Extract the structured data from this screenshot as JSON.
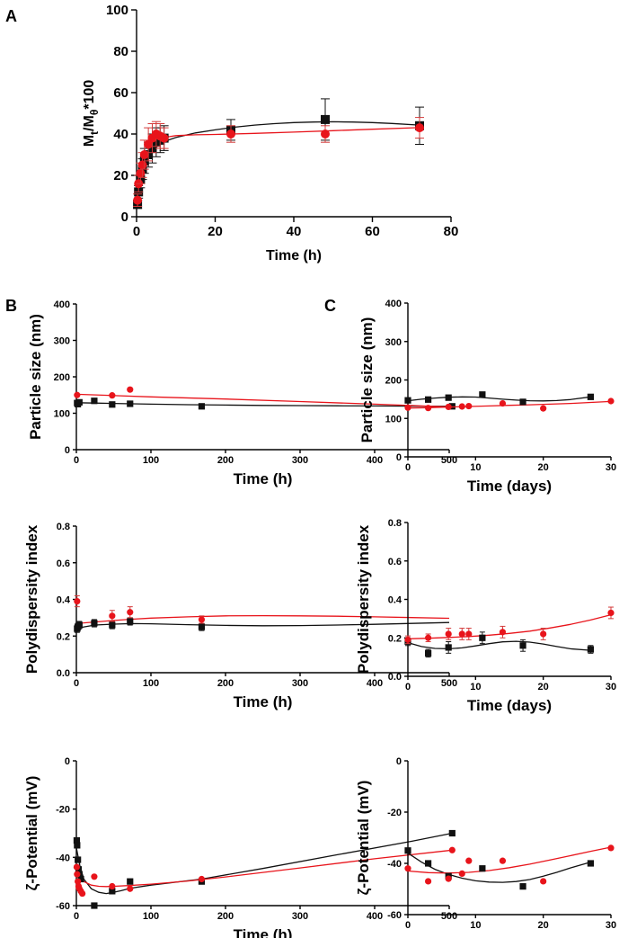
{
  "panel_labels": {
    "a": "A",
    "b": "B",
    "c": "C"
  },
  "colors": {
    "black_series": "#111111",
    "red_series": "#e8141b",
    "red_errorbar": "#d33b3b"
  },
  "chart_data": [
    {
      "id": "A",
      "type": "scatter",
      "xlabel": "Time (h)",
      "ylabel_main": "M",
      "ylabel_sub1": "t",
      "ylabel_mid": "/M",
      "ylabel_sub2": "θ",
      "ylabel_tail": "*100",
      "xlim": [
        0,
        80
      ],
      "ylim": [
        0,
        100
      ],
      "xticks": [
        "0",
        "20",
        "40",
        "60",
        "80"
      ],
      "xtick_values": [
        0,
        20,
        40,
        60,
        80
      ],
      "yticks": [
        "0",
        "20",
        "40",
        "60",
        "80",
        "100"
      ],
      "ytick_values": [
        0,
        20,
        40,
        60,
        80,
        100
      ],
      "series": [
        {
          "name": "black",
          "marker": "square",
          "x": [
            0.25,
            0.5,
            1,
            1.5,
            2,
            3,
            4,
            5,
            6,
            7,
            24,
            48,
            72
          ],
          "y": [
            6,
            12,
            18,
            23,
            27,
            30,
            33,
            36,
            37,
            38,
            42,
            47,
            44
          ],
          "err": [
            2,
            3,
            4,
            5,
            6,
            6,
            7,
            7,
            6,
            6,
            5,
            10,
            9
          ],
          "curve_x": [
            0,
            0.5,
            1,
            2,
            3,
            4,
            5,
            6,
            8,
            10,
            15,
            20,
            25,
            30,
            35,
            40,
            45,
            50,
            55,
            60,
            65,
            72
          ],
          "curve_y": [
            5,
            12,
            17,
            24,
            28.5,
            31.5,
            33.5,
            35,
            37,
            38.3,
            40.5,
            42,
            43.3,
            44.3,
            45,
            45.5,
            45.8,
            45.9,
            45.8,
            45.5,
            45.1,
            44.3
          ]
        },
        {
          "name": "red",
          "marker": "circle",
          "x": [
            0.25,
            0.5,
            1,
            1.5,
            2,
            3,
            4,
            5,
            6,
            7,
            24,
            48,
            72
          ],
          "y": [
            8,
            16,
            21,
            25,
            30,
            35,
            38,
            40,
            39,
            38,
            40,
            40,
            43
          ],
          "err": [
            3,
            4,
            5,
            6,
            7,
            8,
            7,
            6,
            6,
            5,
            4,
            4,
            5
          ],
          "curve_x": [
            0,
            0.5,
            1,
            2,
            3,
            4,
            5,
            7,
            10,
            15,
            20,
            30,
            40,
            50,
            60,
            72
          ],
          "curve_y": [
            6,
            14,
            20,
            27,
            31.5,
            34.5,
            36.5,
            38.3,
            39.2,
            39.6,
            39.8,
            40.3,
            40.9,
            41.6,
            42.3,
            43.1
          ]
        }
      ]
    },
    {
      "id": "B1",
      "type": "scatter",
      "xlabel": "Time (h)",
      "ylabel": "Particle size (nm)",
      "xlim": [
        0,
        500
      ],
      "ylim": [
        0,
        400
      ],
      "xticks": [
        "0",
        "100",
        "200",
        "300",
        "400",
        "500"
      ],
      "xtick_values": [
        0,
        100,
        200,
        300,
        400,
        500
      ],
      "yticks": [
        "0",
        "100",
        "200",
        "300",
        "400"
      ],
      "ytick_values": [
        0,
        100,
        200,
        300,
        400
      ],
      "series": [
        {
          "name": "black",
          "marker": "square",
          "x": [
            1,
            2,
            4,
            24,
            48,
            72,
            168,
            504
          ],
          "y": [
            128,
            125,
            130,
            134,
            124,
            126,
            119,
            119
          ],
          "err": [],
          "curve_x": [
            0,
            25,
            50,
            75,
            100,
            150,
            200,
            250,
            300,
            350,
            400,
            450,
            504
          ],
          "curve_y": [
            129,
            128,
            127,
            126,
            125,
            123.5,
            122.5,
            121.5,
            121,
            120.5,
            120,
            119.5,
            119
          ]
        },
        {
          "name": "red",
          "marker": "circle",
          "x": [
            1,
            48,
            72
          ],
          "y": [
            150,
            149,
            165
          ],
          "err": [],
          "curve_x": [
            0,
            100,
            200,
            300,
            400,
            504
          ],
          "curve_y": [
            152,
            145,
            139,
            132,
            125,
            117
          ]
        }
      ]
    },
    {
      "id": "B2",
      "type": "scatter",
      "xlabel": "Time (h)",
      "ylabel": "Polydispersity index",
      "xlim": [
        0,
        500
      ],
      "ylim": [
        0,
        0.8
      ],
      "xticks": [
        "0",
        "100",
        "200",
        "300",
        "400",
        "500"
      ],
      "xtick_values": [
        0,
        100,
        200,
        300,
        400,
        500
      ],
      "yticks": [
        "0.0",
        "0.2",
        "0.4",
        "0.6",
        "0.8"
      ],
      "ytick_values": [
        0,
        0.2,
        0.4,
        0.6,
        0.8
      ],
      "series": [
        {
          "name": "black",
          "marker": "square",
          "x": [
            1,
            2,
            4,
            24,
            48,
            72,
            168
          ],
          "y": [
            0.24,
            0.25,
            0.26,
            0.27,
            0.26,
            0.28,
            0.25
          ],
          "err": [
            0.02,
            0.02,
            0.02,
            0.02,
            0.02,
            0.02,
            0.02
          ],
          "curve_x": [
            0,
            10,
            25,
            50,
            75,
            100,
            150,
            200,
            250,
            300,
            350,
            400,
            450,
            500
          ],
          "curve_y": [
            0.24,
            0.25,
            0.26,
            0.265,
            0.268,
            0.267,
            0.262,
            0.258,
            0.256,
            0.257,
            0.26,
            0.264,
            0.269,
            0.274
          ]
        },
        {
          "name": "red",
          "marker": "circle",
          "x": [
            1,
            48,
            72,
            168
          ],
          "y": [
            0.39,
            0.31,
            0.33,
            0.29
          ],
          "err": [
            0.03,
            0.03,
            0.03,
            0.02
          ],
          "curve_x": [
            0,
            10,
            25,
            50,
            75,
            100,
            150,
            200,
            250,
            300,
            350,
            400,
            450,
            500
          ],
          "curve_y": [
            0.27,
            0.272,
            0.277,
            0.285,
            0.292,
            0.298,
            0.305,
            0.31,
            0.311,
            0.31,
            0.308,
            0.305,
            0.301,
            0.297
          ]
        }
      ]
    },
    {
      "id": "B3",
      "type": "scatter",
      "xlabel": "Time (h)",
      "ylabel": "ζ-Potential (mV)",
      "xlim": [
        0,
        500
      ],
      "ylim": [
        -60,
        0
      ],
      "xticks": [
        "0",
        "100",
        "200",
        "300",
        "400",
        "500"
      ],
      "xtick_values": [
        0,
        100,
        200,
        300,
        400,
        500
      ],
      "yticks": [
        "-60",
        "-40",
        "-20",
        "0"
      ],
      "ytick_values": [
        -60,
        -40,
        -20,
        0
      ],
      "series": [
        {
          "name": "black",
          "marker": "square",
          "x": [
            0.5,
            1,
            2,
            3,
            4,
            6,
            24,
            48,
            72,
            168,
            504
          ],
          "y": [
            -33,
            -35,
            -41,
            -45,
            -47,
            -49,
            -60,
            -54,
            -50,
            -50,
            -30
          ],
          "err": [],
          "curve_x": [
            0,
            5,
            10,
            20,
            30,
            40,
            50,
            60,
            72,
            100,
            168,
            250,
            350,
            450,
            504
          ],
          "curve_y": [
            -36,
            -44,
            -49,
            -53,
            -54.5,
            -55,
            -54.5,
            -53.8,
            -52.8,
            -51.5,
            -49,
            -44.6,
            -38.9,
            -33.3,
            -30
          ]
        },
        {
          "name": "red",
          "marker": "circle",
          "x": [
            0.5,
            1,
            2,
            3,
            4,
            6,
            8,
            24,
            48,
            72,
            168,
            504
          ],
          "y": [
            -44,
            -47,
            -50,
            -52,
            -53,
            -54,
            -55,
            -48,
            -52,
            -53,
            -49,
            -37
          ],
          "err": [],
          "curve_x": [
            0,
            5,
            10,
            20,
            30,
            40,
            50,
            70,
            100,
            150,
            200,
            300,
            400,
            504
          ],
          "curve_y": [
            -44,
            -48,
            -50,
            -51.5,
            -52,
            -52.1,
            -52,
            -51.7,
            -51.1,
            -49.8,
            -48.1,
            -44.4,
            -40.6,
            -37
          ]
        }
      ]
    },
    {
      "id": "C1",
      "type": "scatter",
      "xlabel": "Time (days)",
      "ylabel": "Particle size (nm)",
      "xlim": [
        0,
        30
      ],
      "ylim": [
        0,
        400
      ],
      "xticks": [
        "0",
        "10",
        "20",
        "30"
      ],
      "xtick_values": [
        0,
        10,
        20,
        30
      ],
      "yticks": [
        "0",
        "100",
        "200",
        "300",
        "400"
      ],
      "ytick_values": [
        0,
        100,
        200,
        300,
        400
      ],
      "series": [
        {
          "name": "black",
          "marker": "square",
          "x": [
            0,
            3,
            6,
            11,
            17,
            27
          ],
          "y": [
            147,
            149,
            154,
            162,
            143,
            156
          ],
          "err": [],
          "curve_x": [
            0,
            2,
            4,
            6,
            8,
            10,
            12,
            14,
            16,
            18,
            20,
            22,
            24,
            27
          ],
          "curve_y": [
            146,
            150,
            153,
            155,
            156,
            155.5,
            153,
            150,
            147.5,
            146,
            145.5,
            146.5,
            149,
            156
          ]
        },
        {
          "name": "red",
          "marker": "circle",
          "x": [
            0,
            3,
            6,
            8,
            9,
            14,
            20,
            30
          ],
          "y": [
            128,
            127,
            130,
            131,
            132,
            139,
            126,
            145
          ],
          "err": [],
          "curve_x": [
            0,
            3,
            6,
            9,
            12,
            15,
            18,
            21,
            24,
            27,
            30
          ],
          "curve_y": [
            127,
            128,
            129.5,
            131,
            132.5,
            134,
            135.5,
            137,
            139,
            141.5,
            144
          ]
        }
      ]
    },
    {
      "id": "C2",
      "type": "scatter",
      "xlabel": "Time (days)",
      "ylabel": "Polydispersity index",
      "xlim": [
        0,
        30
      ],
      "ylim": [
        0,
        0.8
      ],
      "xticks": [
        "0",
        "10",
        "20",
        "30"
      ],
      "xtick_values": [
        0,
        10,
        20,
        30
      ],
      "yticks": [
        "0.0",
        "0.2",
        "0.4",
        "0.6",
        "0.8"
      ],
      "ytick_values": [
        0,
        0.2,
        0.4,
        0.6,
        0.8
      ],
      "series": [
        {
          "name": "black",
          "marker": "square",
          "x": [
            0,
            3,
            6,
            11,
            17,
            27
          ],
          "y": [
            0.18,
            0.12,
            0.15,
            0.2,
            0.16,
            0.14
          ],
          "err": [
            0.02,
            0.02,
            0.03,
            0.03,
            0.03,
            0.02
          ],
          "curve_x": [
            0,
            2,
            4,
            6,
            8,
            10,
            12,
            14,
            16,
            18,
            20,
            22,
            24,
            27
          ],
          "curve_y": [
            0.175,
            0.155,
            0.145,
            0.143,
            0.148,
            0.158,
            0.17,
            0.179,
            0.182,
            0.178,
            0.168,
            0.155,
            0.143,
            0.135
          ]
        },
        {
          "name": "red",
          "marker": "circle",
          "x": [
            0,
            3,
            6,
            8,
            9,
            14,
            20,
            30
          ],
          "y": [
            0.19,
            0.2,
            0.22,
            0.22,
            0.22,
            0.23,
            0.22,
            0.33
          ],
          "err": [
            0.02,
            0.02,
            0.03,
            0.03,
            0.03,
            0.03,
            0.03,
            0.03
          ],
          "curve_x": [
            0,
            3,
            6,
            9,
            12,
            15,
            18,
            21,
            24,
            27,
            30
          ],
          "curve_y": [
            0.195,
            0.198,
            0.202,
            0.207,
            0.214,
            0.223,
            0.235,
            0.251,
            0.27,
            0.293,
            0.32
          ]
        }
      ]
    },
    {
      "id": "C3",
      "type": "scatter",
      "xlabel": "Time (days)",
      "ylabel": "ζ-Potential (mV)",
      "xlim": [
        0,
        30
      ],
      "ylim": [
        -60,
        0
      ],
      "xticks": [
        "0",
        "10",
        "20",
        "30"
      ],
      "xtick_values": [
        0,
        10,
        20,
        30
      ],
      "yticks": [
        "-60",
        "-40",
        "-20",
        "0"
      ],
      "ytick_values": [
        -60,
        -40,
        -20,
        0
      ],
      "series": [
        {
          "name": "black",
          "marker": "square",
          "x": [
            0,
            3,
            6,
            11,
            17,
            27
          ],
          "y": [
            -35,
            -40,
            -45,
            -42,
            -49,
            -40
          ],
          "err": [],
          "curve_x": [
            0,
            2,
            4,
            6,
            8,
            10,
            12,
            14,
            16,
            18,
            20,
            22,
            24,
            27
          ],
          "curve_y": [
            -36,
            -39.5,
            -42.3,
            -44.3,
            -45.8,
            -46.8,
            -47.3,
            -47.4,
            -47.1,
            -46.3,
            -45,
            -43.5,
            -41.8,
            -39.5
          ]
        },
        {
          "name": "red",
          "marker": "circle",
          "x": [
            0,
            3,
            6,
            8,
            9,
            14,
            20,
            30
          ],
          "y": [
            -42,
            -47,
            -46,
            -44,
            -39,
            -39,
            -47,
            -34
          ],
          "err": [],
          "curve_x": [
            0,
            3,
            6,
            9,
            12,
            15,
            18,
            21,
            24,
            27,
            30
          ],
          "curve_y": [
            -43,
            -43.6,
            -43.8,
            -43.5,
            -42.8,
            -41.7,
            -40.3,
            -38.7,
            -37,
            -35.3,
            -33.7
          ]
        }
      ]
    }
  ]
}
